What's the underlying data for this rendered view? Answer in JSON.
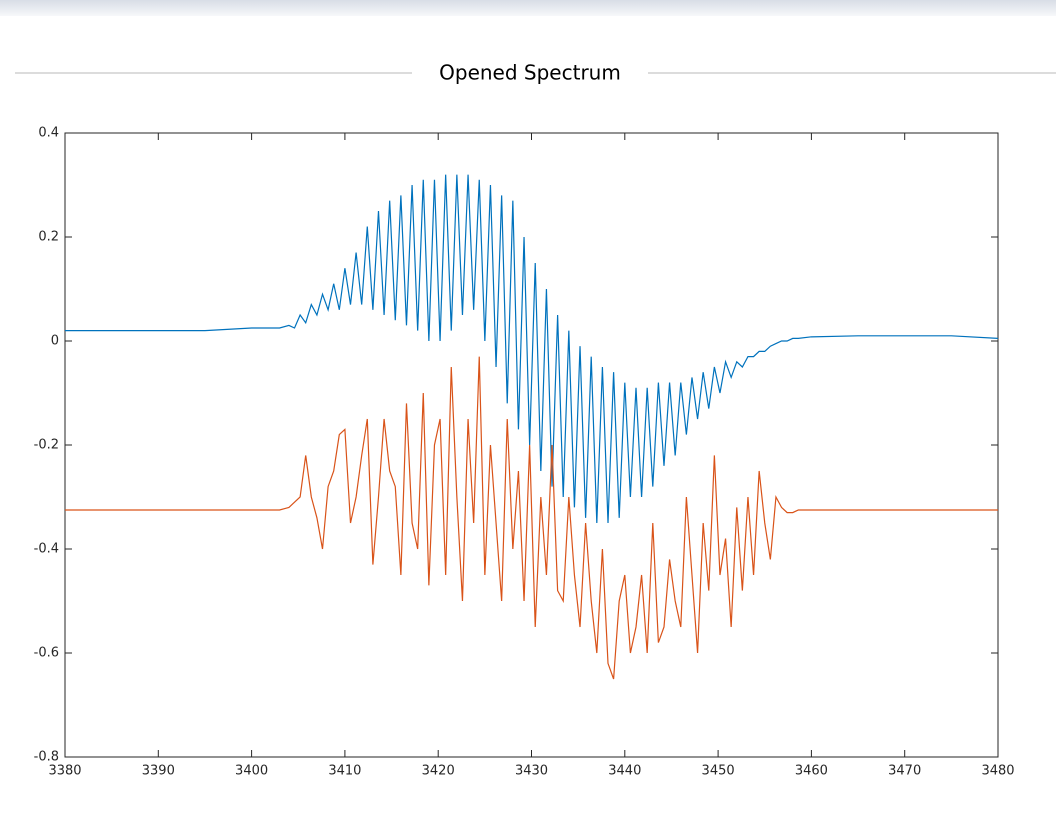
{
  "chart_data": {
    "type": "line",
    "title": "Opened Spectrum",
    "x": [
      3380,
      3385,
      3390,
      3395,
      3400,
      3403,
      3404.0,
      3404.6,
      3405.2,
      3405.8,
      3406.4,
      3407.0,
      3407.6,
      3408.2,
      3408.8,
      3409.4,
      3410.0,
      3410.6,
      3411.2,
      3411.8,
      3412.4,
      3413.0,
      3413.6,
      3414.2,
      3414.8,
      3415.4,
      3416.0,
      3416.6,
      3417.2,
      3417.8,
      3418.4,
      3419.0,
      3419.6,
      3420.2,
      3420.8,
      3421.4,
      3422.0,
      3422.6,
      3423.2,
      3423.8,
      3424.4,
      3425.0,
      3425.6,
      3426.2,
      3426.8,
      3427.4,
      3428.0,
      3428.6,
      3429.2,
      3429.8,
      3430.4,
      3431.0,
      3431.6,
      3432.2,
      3432.8,
      3433.4,
      3434.0,
      3434.6,
      3435.2,
      3435.8,
      3436.4,
      3437.0,
      3437.6,
      3438.2,
      3438.8,
      3439.4,
      3440.0,
      3440.6,
      3441.2,
      3441.8,
      3442.4,
      3443.0,
      3443.6,
      3444.2,
      3444.8,
      3445.4,
      3446.0,
      3446.6,
      3447.2,
      3447.8,
      3448.4,
      3449.0,
      3449.6,
      3450.2,
      3450.8,
      3451.4,
      3452.0,
      3452.6,
      3453.2,
      3453.8,
      3454.4,
      3455.0,
      3455.6,
      3456.2,
      3456.8,
      3457.4,
      3458.0,
      3458.6,
      3460,
      3465,
      3470,
      3475,
      3480
    ],
    "series": [
      {
        "color": "#0072BD",
        "values": [
          0.02,
          0.02,
          0.02,
          0.02,
          0.025,
          0.025,
          0.03,
          0.025,
          0.05,
          0.035,
          0.07,
          0.05,
          0.09,
          0.06,
          0.11,
          0.06,
          0.14,
          0.07,
          0.17,
          0.07,
          0.22,
          0.06,
          0.25,
          0.05,
          0.27,
          0.04,
          0.28,
          0.03,
          0.3,
          0.02,
          0.31,
          0.0,
          0.31,
          0.0,
          0.32,
          0.02,
          0.32,
          0.05,
          0.32,
          0.06,
          0.31,
          0.0,
          0.3,
          -0.05,
          0.28,
          -0.12,
          0.27,
          -0.17,
          0.2,
          -0.2,
          0.15,
          -0.25,
          0.1,
          -0.28,
          0.05,
          -0.3,
          0.02,
          -0.32,
          -0.01,
          -0.34,
          -0.03,
          -0.35,
          -0.05,
          -0.35,
          -0.06,
          -0.34,
          -0.08,
          -0.3,
          -0.09,
          -0.3,
          -0.09,
          -0.28,
          -0.08,
          -0.24,
          -0.08,
          -0.22,
          -0.08,
          -0.18,
          -0.07,
          -0.15,
          -0.06,
          -0.13,
          -0.05,
          -0.1,
          -0.04,
          -0.07,
          -0.04,
          -0.05,
          -0.03,
          -0.03,
          -0.02,
          -0.02,
          -0.01,
          -0.005,
          0.0,
          0.0,
          0.005,
          0.005,
          0.008,
          0.01,
          0.01,
          0.01,
          0.005
        ]
      },
      {
        "color": "#D95319",
        "values": [
          -0.325,
          -0.325,
          -0.325,
          -0.325,
          -0.325,
          -0.325,
          -0.32,
          -0.31,
          -0.3,
          -0.22,
          -0.3,
          -0.34,
          -0.4,
          -0.28,
          -0.25,
          -0.18,
          -0.17,
          -0.35,
          -0.3,
          -0.22,
          -0.15,
          -0.43,
          -0.3,
          -0.15,
          -0.25,
          -0.28,
          -0.45,
          -0.12,
          -0.35,
          -0.4,
          -0.1,
          -0.47,
          -0.2,
          -0.15,
          -0.45,
          -0.05,
          -0.3,
          -0.5,
          -0.15,
          -0.35,
          -0.03,
          -0.45,
          -0.2,
          -0.35,
          -0.5,
          -0.15,
          -0.4,
          -0.25,
          -0.5,
          -0.2,
          -0.55,
          -0.3,
          -0.45,
          -0.2,
          -0.48,
          -0.5,
          -0.3,
          -0.45,
          -0.55,
          -0.35,
          -0.5,
          -0.6,
          -0.4,
          -0.62,
          -0.65,
          -0.5,
          -0.45,
          -0.6,
          -0.55,
          -0.45,
          -0.6,
          -0.35,
          -0.58,
          -0.55,
          -0.42,
          -0.5,
          -0.55,
          -0.3,
          -0.45,
          -0.6,
          -0.35,
          -0.48,
          -0.22,
          -0.45,
          -0.38,
          -0.55,
          -0.32,
          -0.48,
          -0.3,
          -0.45,
          -0.25,
          -0.35,
          -0.42,
          -0.3,
          -0.32,
          -0.33,
          -0.33,
          -0.325,
          -0.325,
          -0.325,
          -0.325,
          -0.325,
          -0.325
        ]
      }
    ],
    "xlim": [
      3380,
      3480
    ],
    "xticks": [
      3380,
      3390,
      3400,
      3410,
      3420,
      3430,
      3440,
      3450,
      3460,
      3470,
      3480
    ],
    "ylim": [
      -0.8,
      0.4
    ],
    "yticks": [
      -0.8,
      -0.6,
      -0.4,
      -0.2,
      0,
      0.2,
      0.4
    ]
  }
}
